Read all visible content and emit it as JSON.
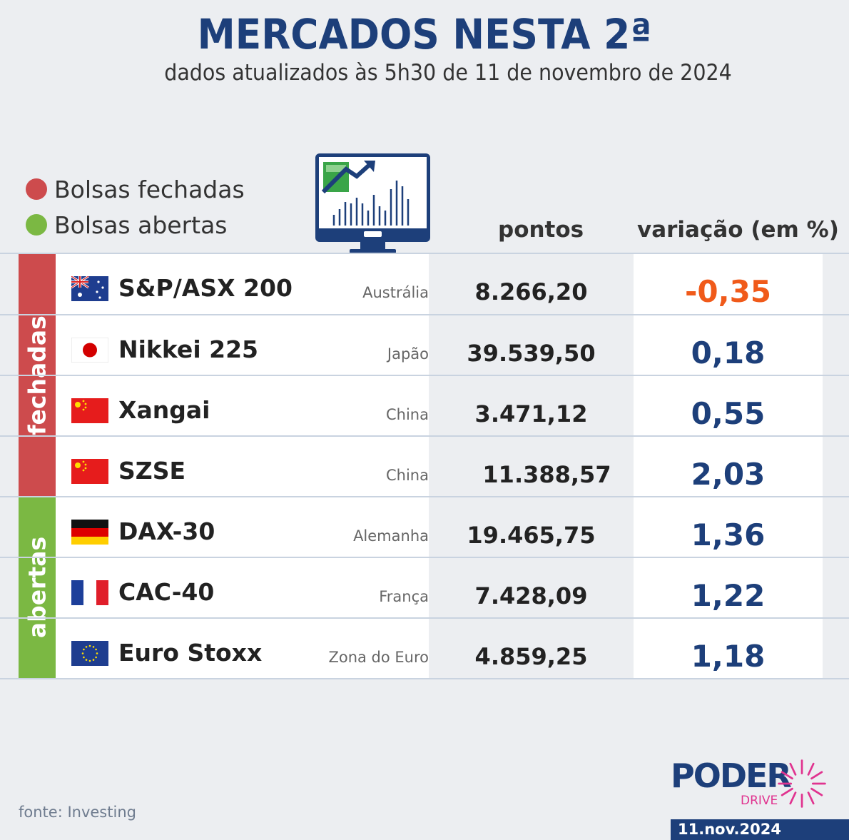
{
  "header": {
    "title": "MERCADOS NESTA 2ª",
    "subtitle": "dados atualizados às 5h30 de 11 de novembro de 2024"
  },
  "legend": {
    "closed_label": "Bolsas fechadas",
    "open_label": "Bolsas abertas",
    "closed_color": "#cd4b4d",
    "open_color": "#7bb843"
  },
  "columns": {
    "points": "pontos",
    "variation": "variação (em %)"
  },
  "groups": {
    "closed": "fechadas",
    "open": "abertas"
  },
  "colors": {
    "negative": "#f05a1a",
    "positive": "#1d3f7a",
    "brand": "#1d3f7a",
    "logo_accent": "#e0338f"
  },
  "rows": [
    {
      "name": "S&P/ASX 200",
      "country": "Austrália",
      "points": "8.266,20",
      "variation": "-0,35",
      "flag": "australia-flag-icon",
      "negative": true
    },
    {
      "name": "Nikkei 225",
      "country": "Japão",
      "points": "39.539,50",
      "variation": "0,18",
      "flag": "japan-flag-icon",
      "negative": false
    },
    {
      "name": "Xangai",
      "country": "China",
      "points": "3.471,12",
      "variation": "0,55",
      "flag": "china-flag-icon",
      "negative": false
    },
    {
      "name": "SZSE",
      "country": "China",
      "points": "11.388,57",
      "variation": "2,03",
      "flag": "china-flag-icon",
      "negative": false
    },
    {
      "name": "DAX-30",
      "country": "Alemanha",
      "points": "19.465,75",
      "variation": "1,36",
      "flag": "germany-flag-icon",
      "negative": false
    },
    {
      "name": "CAC-40",
      "country": "França",
      "points": "7.428,09",
      "variation": "1,22",
      "flag": "france-flag-icon",
      "negative": false
    },
    {
      "name": "Euro Stoxx",
      "country": "Zona do Euro",
      "points": "4.859,25",
      "variation": "1,18",
      "flag": "eu-flag-icon",
      "negative": false
    }
  ],
  "footer": {
    "source": "fonte: Investing",
    "logo_main": "PODER",
    "logo_sub": "DRIVE",
    "date": "11.nov.2024"
  }
}
